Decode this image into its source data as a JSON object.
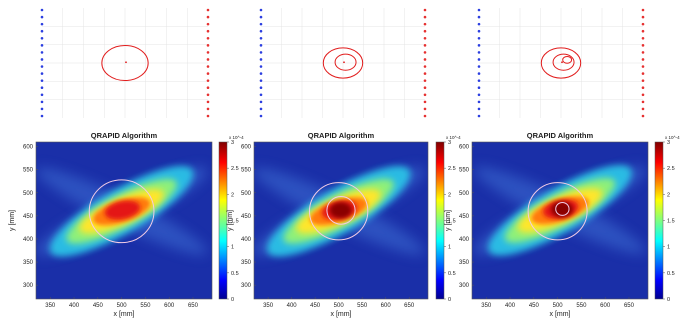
{
  "chart_data": [
    {
      "type": "diagram",
      "panel": "geometry-1",
      "circles": [
        {
          "cx": 500,
          "cy": 460,
          "r": 72
        }
      ],
      "center_marker": true,
      "colors": {
        "left_array": "#2b3ee0",
        "right_array": "#e63030",
        "circle": "#e11d1d"
      }
    },
    {
      "type": "diagram",
      "panel": "geometry-2",
      "circles": [
        {
          "cx": 500,
          "cy": 460,
          "r": 62
        },
        {
          "cx": 505,
          "cy": 462,
          "r": 33
        }
      ],
      "center_marker": true,
      "colors": {
        "left_array": "#2b3ee0",
        "right_array": "#e63030",
        "circle": "#e11d1d"
      }
    },
    {
      "type": "diagram",
      "panel": "geometry-3",
      "circles": [
        {
          "cx": 500,
          "cy": 460,
          "r": 62
        },
        {
          "cx": 505,
          "cy": 462,
          "r": 33
        },
        {
          "cx": 512,
          "cy": 468,
          "r": 14
        }
      ],
      "center_marker": true,
      "colors": {
        "left_array": "#2b3ee0",
        "right_array": "#e63030",
        "circle": "#e11d1d"
      }
    },
    {
      "type": "heatmap",
      "title": "QRAPID Algorithm",
      "xlabel": "x [mm]",
      "ylabel": "y [mm]",
      "xlim": [
        320,
        690
      ],
      "ylim": [
        270,
        610
      ],
      "xticks": [
        "350",
        "400",
        "450",
        "500",
        "550",
        "600",
        "650"
      ],
      "yticks": [
        "300",
        "350",
        "400",
        "450",
        "500",
        "550",
        "600"
      ],
      "colorbar": {
        "ticks": [
          "0",
          "0.5",
          "1",
          "1.5",
          "2",
          "2.5",
          "3"
        ],
        "multiplier": "x 10^-4",
        "range": [
          0,
          3
        ]
      },
      "overlay_circles": [
        {
          "cx": 500,
          "cy": 460,
          "r": 68
        }
      ],
      "hotspot": {
        "cx": 500,
        "cy": 460,
        "peak": 2.9
      }
    },
    {
      "type": "heatmap",
      "title": "QRAPID Algorithm",
      "xlabel": "x [mm]",
      "ylabel": "y [mm]",
      "xlim": [
        320,
        690
      ],
      "ylim": [
        270,
        610
      ],
      "xticks": [
        "350",
        "400",
        "450",
        "500",
        "550",
        "600",
        "650"
      ],
      "yticks": [
        "300",
        "350",
        "400",
        "450",
        "500",
        "550",
        "600"
      ],
      "colorbar": {
        "ticks": [
          "0",
          "0.5",
          "1",
          "1.5",
          "2",
          "2.5",
          "3"
        ],
        "multiplier": "x 10^-4",
        "range": [
          0,
          3
        ]
      },
      "overlay_circles": [
        {
          "cx": 500,
          "cy": 460,
          "r": 62
        },
        {
          "cx": 505,
          "cy": 462,
          "r": 30
        }
      ],
      "hotspot": {
        "cx": 500,
        "cy": 460,
        "peak": 3.0
      }
    },
    {
      "type": "heatmap",
      "title": "QRAPID Algorithm",
      "xlabel": "x [mm]",
      "ylabel": "y [mm]",
      "xlim": [
        320,
        690
      ],
      "ylim": [
        270,
        610
      ],
      "xticks": [
        "350",
        "400",
        "450",
        "500",
        "550",
        "600",
        "650"
      ],
      "yticks": [
        "300",
        "350",
        "400",
        "450",
        "500",
        "550",
        "600"
      ],
      "colorbar": {
        "ticks": [
          "0",
          "0.5",
          "1",
          "1.5",
          "2",
          "2.5",
          "3"
        ],
        "multiplier": "x 10^-4",
        "range": [
          0,
          3
        ]
      },
      "overlay_circles": [
        {
          "cx": 500,
          "cy": 460,
          "r": 62
        },
        {
          "cx": 510,
          "cy": 465,
          "r": 14
        }
      ],
      "hotspot": {
        "cx": 505,
        "cy": 462,
        "peak": 3.0
      }
    }
  ]
}
